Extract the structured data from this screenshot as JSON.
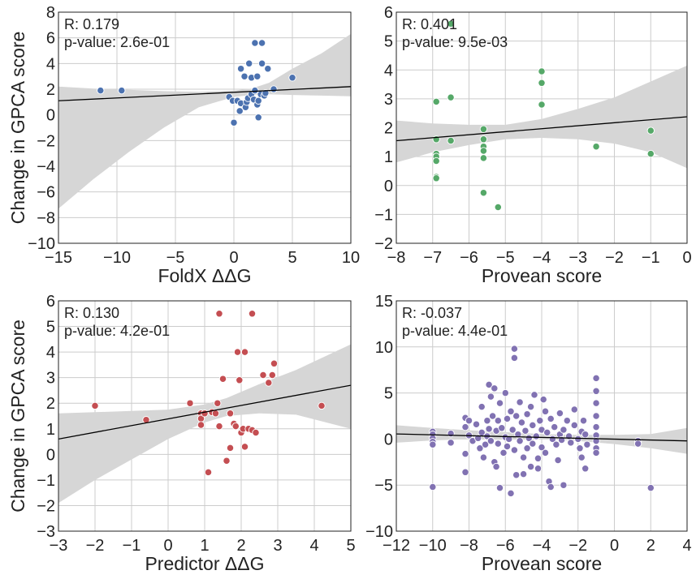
{
  "chart_data": [
    {
      "type": "scatter",
      "title": "",
      "xlabel": "FoldX ΔΔG",
      "ylabel": "Change in GPCA score",
      "xlim": [
        -15,
        10
      ],
      "ylim": [
        -10,
        8
      ],
      "xticks": [
        -15,
        -10,
        -5,
        0,
        5,
        10
      ],
      "yticks": [
        -10,
        -8,
        -6,
        -4,
        -2,
        0,
        2,
        4,
        6,
        8
      ],
      "grid": true,
      "color": "#4c72b0",
      "annotation_lines": [
        "R: 0.179",
        "p-value: 2.6e-01"
      ],
      "fit_line": {
        "x": [
          -15,
          10
        ],
        "y": [
          1.1,
          2.2
        ]
      },
      "confidence_band": {
        "x": [
          -15,
          -12,
          -9,
          -6,
          -3,
          0,
          1.5,
          3,
          5,
          7.5,
          10
        ],
        "lower": [
          -7.3,
          -5.0,
          -2.9,
          -1.0,
          0.6,
          1.4,
          1.55,
          1.6,
          1.55,
          1.5,
          1.45
        ],
        "upper": [
          2.2,
          2.05,
          1.95,
          1.85,
          1.8,
          1.9,
          2.05,
          2.5,
          3.6,
          4.8,
          6.3
        ]
      },
      "points": [
        [
          -11.4,
          1.9
        ],
        [
          -9.6,
          1.9
        ],
        [
          0.0,
          -0.6
        ],
        [
          -0.4,
          1.4
        ],
        [
          -0.1,
          1.1
        ],
        [
          0.3,
          1.1
        ],
        [
          0.6,
          0.9
        ],
        [
          0.5,
          0.3
        ],
        [
          0.6,
          3.6
        ],
        [
          0.9,
          3.0
        ],
        [
          1.0,
          0.6
        ],
        [
          1.1,
          1.0
        ],
        [
          1.2,
          1.3
        ],
        [
          1.3,
          4.0
        ],
        [
          1.5,
          2.9
        ],
        [
          1.5,
          1.6
        ],
        [
          1.7,
          1.2
        ],
        [
          1.8,
          5.6
        ],
        [
          1.8,
          1.9
        ],
        [
          2.0,
          3.0
        ],
        [
          2.0,
          0.8
        ],
        [
          2.1,
          1.1
        ],
        [
          2.1,
          -0.2
        ],
        [
          2.3,
          1.6
        ],
        [
          2.4,
          5.6
        ],
        [
          2.4,
          4.0
        ],
        [
          2.6,
          1.5
        ],
        [
          2.7,
          1.7
        ],
        [
          2.9,
          3.6
        ],
        [
          3.4,
          2.0
        ],
        [
          5.0,
          2.9
        ]
      ]
    },
    {
      "type": "scatter",
      "title": "",
      "xlabel": "Provean score",
      "ylabel": "",
      "xlim": [
        -8,
        0
      ],
      "ylim": [
        -2,
        6
      ],
      "xticks": [
        -8,
        -7,
        -6,
        -5,
        -4,
        -3,
        -2,
        -1,
        0
      ],
      "yticks": [
        -2,
        -1,
        0,
        1,
        2,
        3,
        4,
        5,
        6
      ],
      "grid": true,
      "color": "#55a868",
      "annotation_lines": [
        "R: 0.401",
        "p-value: 9.5e-03"
      ],
      "fit_line": {
        "x": [
          -8,
          0
        ],
        "y": [
          1.55,
          2.38
        ]
      },
      "confidence_band": {
        "x": [
          -8,
          -7,
          -6,
          -5,
          -4,
          -3,
          -2,
          -1,
          0
        ],
        "lower": [
          0.8,
          1.15,
          1.4,
          1.6,
          1.65,
          1.6,
          1.45,
          1.15,
          0.6
        ],
        "upper": [
          2.25,
          2.15,
          2.1,
          2.1,
          2.3,
          2.65,
          3.05,
          3.6,
          4.15
        ]
      },
      "points": [
        [
          -6.9,
          2.9
        ],
        [
          -6.9,
          1.6
        ],
        [
          -6.9,
          1.1
        ],
        [
          -6.9,
          1.0
        ],
        [
          -6.9,
          0.85
        ],
        [
          -6.9,
          0.3
        ],
        [
          -6.9,
          0.25
        ],
        [
          -6.5,
          5.6
        ],
        [
          -6.5,
          3.05
        ],
        [
          -6.5,
          1.55
        ],
        [
          -5.6,
          1.95
        ],
        [
          -5.6,
          1.6
        ],
        [
          -5.6,
          1.35
        ],
        [
          -5.6,
          1.2
        ],
        [
          -5.6,
          0.95
        ],
        [
          -5.6,
          -0.25
        ],
        [
          -5.2,
          -0.75
        ],
        [
          -4.0,
          3.95
        ],
        [
          -4.0,
          3.55
        ],
        [
          -4.0,
          2.8
        ],
        [
          -2.5,
          1.35
        ],
        [
          -1.0,
          1.9
        ],
        [
          -1.0,
          1.1
        ]
      ]
    },
    {
      "type": "scatter",
      "title": "",
      "xlabel": "Predictor ΔΔG",
      "ylabel": "Change in GPCA score",
      "xlim": [
        -3,
        5
      ],
      "ylim": [
        -3,
        6
      ],
      "xticks": [
        -3,
        -2,
        -1,
        0,
        1,
        2,
        3,
        4,
        5
      ],
      "yticks": [
        -3,
        -2,
        -1,
        0,
        1,
        2,
        3,
        4,
        5,
        6
      ],
      "grid": true,
      "color": "#c44e52",
      "annotation_lines": [
        "R: 0.130",
        "p-value: 4.2e-01"
      ],
      "fit_line": {
        "x": [
          -3,
          5
        ],
        "y": [
          0.6,
          2.7
        ]
      },
      "confidence_band": {
        "x": [
          -3,
          -2,
          -1,
          0,
          1,
          1.6,
          2.5,
          3.5,
          5
        ],
        "lower": [
          -1.9,
          -1.0,
          -0.2,
          0.6,
          1.25,
          1.5,
          1.6,
          1.55,
          1.0
        ],
        "upper": [
          1.6,
          1.65,
          1.7,
          1.75,
          1.95,
          2.2,
          2.75,
          3.3,
          4.3
        ]
      },
      "points": [
        [
          -2.0,
          1.9
        ],
        [
          -0.6,
          1.35
        ],
        [
          0.6,
          2.0
        ],
        [
          0.9,
          1.6
        ],
        [
          0.9,
          1.4
        ],
        [
          0.9,
          1.15
        ],
        [
          1.0,
          1.6
        ],
        [
          1.1,
          -0.7
        ],
        [
          1.2,
          1.65
        ],
        [
          1.3,
          1.6
        ],
        [
          1.35,
          2.0
        ],
        [
          1.4,
          5.5
        ],
        [
          1.4,
          1.1
        ],
        [
          1.5,
          2.95
        ],
        [
          1.6,
          -0.25
        ],
        [
          1.7,
          1.6
        ],
        [
          1.7,
          0.25
        ],
        [
          1.8,
          1.2
        ],
        [
          1.85,
          1.1
        ],
        [
          1.9,
          4.0
        ],
        [
          1.95,
          2.9
        ],
        [
          2.0,
          0.85
        ],
        [
          2.05,
          1.0
        ],
        [
          2.1,
          4.0
        ],
        [
          2.1,
          0.3
        ],
        [
          2.2,
          1.0
        ],
        [
          2.3,
          5.5
        ],
        [
          2.3,
          0.95
        ],
        [
          2.4,
          0.85
        ],
        [
          2.6,
          3.1
        ],
        [
          2.75,
          2.8
        ],
        [
          2.85,
          3.1
        ],
        [
          2.9,
          3.55
        ],
        [
          4.2,
          1.9
        ]
      ]
    },
    {
      "type": "scatter",
      "title": "",
      "xlabel": "Provean score",
      "ylabel": "",
      "xlim": [
        -12,
        4
      ],
      "ylim": [
        -10,
        15
      ],
      "xticks": [
        -12,
        -10,
        -8,
        -6,
        -4,
        -2,
        0,
        2,
        4
      ],
      "yticks": [
        -10,
        -5,
        0,
        5,
        10,
        15
      ],
      "grid": true,
      "color": "#8172b2",
      "annotation_lines": [
        "R: -0.037",
        "p-value: 4.4e-01"
      ],
      "fit_line": {
        "x": [
          -12,
          4
        ],
        "y": [
          0.55,
          -0.2
        ]
      },
      "confidence_band": {
        "x": [
          -12,
          -10,
          -8,
          -6,
          -4,
          -2,
          0,
          2,
          4
        ],
        "lower": [
          -0.4,
          -0.15,
          0.0,
          0.05,
          0.0,
          -0.2,
          -0.55,
          -1.0,
          -1.6
        ],
        "upper": [
          1.5,
          1.2,
          0.95,
          0.75,
          0.55,
          0.45,
          0.45,
          0.55,
          1.2
        ]
      },
      "points": [
        [
          -10,
          0.8
        ],
        [
          -10,
          0.5
        ],
        [
          -10,
          0.1
        ],
        [
          -10,
          -0.3
        ],
        [
          -10,
          -0.6
        ],
        [
          -10,
          -5.2
        ],
        [
          -9,
          0.6
        ],
        [
          -9,
          -0.4
        ],
        [
          -8.2,
          2.3
        ],
        [
          -8.2,
          1.3
        ],
        [
          -8.2,
          -1.6
        ],
        [
          -8.2,
          -3.6
        ],
        [
          -8.0,
          0.4
        ],
        [
          -8.0,
          2.0
        ],
        [
          -7.8,
          -0.2
        ],
        [
          -7.6,
          1.6
        ],
        [
          -7.5,
          0.1
        ],
        [
          -7.4,
          -1.0
        ],
        [
          -7.3,
          3.5
        ],
        [
          -7.3,
          0.7
        ],
        [
          -7.2,
          -2.0
        ],
        [
          -7.1,
          -0.6
        ],
        [
          -7.0,
          2.0
        ],
        [
          -7.0,
          0.3
        ],
        [
          -6.9,
          5.9
        ],
        [
          -6.9,
          1.1
        ],
        [
          -6.8,
          4.6
        ],
        [
          -6.8,
          -0.2
        ],
        [
          -6.7,
          2.5
        ],
        [
          -6.6,
          5.5
        ],
        [
          -6.6,
          -2.5
        ],
        [
          -6.5,
          0.9
        ],
        [
          -6.5,
          -3.0
        ],
        [
          -6.4,
          2.0
        ],
        [
          -6.4,
          -0.5
        ],
        [
          -6.3,
          3.9
        ],
        [
          -6.3,
          -5.3
        ],
        [
          -6.2,
          1.2
        ],
        [
          -6.1,
          -1.5
        ],
        [
          -6.0,
          0.2
        ],
        [
          -6.0,
          5.0
        ],
        [
          -5.9,
          2.2
        ],
        [
          -5.9,
          -0.8
        ],
        [
          -5.8,
          0.0
        ],
        [
          -5.7,
          3.0
        ],
        [
          -5.7,
          -5.9
        ],
        [
          -5.6,
          1.0
        ],
        [
          -5.5,
          9.8
        ],
        [
          -5.5,
          8.8
        ],
        [
          -5.5,
          -1.2
        ],
        [
          -5.4,
          2.5
        ],
        [
          -5.4,
          -3.9
        ],
        [
          -5.3,
          0.5
        ],
        [
          -5.2,
          4.0
        ],
        [
          -5.2,
          -0.2
        ],
        [
          -5.1,
          1.8
        ],
        [
          -5.0,
          -2.0
        ],
        [
          -5.0,
          -3.8
        ],
        [
          -4.9,
          0.9
        ],
        [
          -4.8,
          2.7
        ],
        [
          -4.8,
          -1.0
        ],
        [
          -4.7,
          0.1
        ],
        [
          -4.6,
          3.5
        ],
        [
          -4.6,
          -3.0
        ],
        [
          -4.5,
          1.5
        ],
        [
          -4.5,
          -0.5
        ],
        [
          -4.4,
          4.8
        ],
        [
          -4.3,
          0.3
        ],
        [
          -4.2,
          -2.1
        ],
        [
          -4.2,
          -3.2
        ],
        [
          -4.1,
          2.0
        ],
        [
          -4.0,
          1.0
        ],
        [
          -4.0,
          -0.9
        ],
        [
          -3.9,
          4.3
        ],
        [
          -3.8,
          3.0
        ],
        [
          -3.8,
          -1.5
        ],
        [
          -3.7,
          0.7
        ],
        [
          -3.6,
          -4.6
        ],
        [
          -3.5,
          2.2
        ],
        [
          -3.5,
          -5.2
        ],
        [
          -3.4,
          0.0
        ],
        [
          -3.3,
          1.3
        ],
        [
          -3.2,
          -0.6
        ],
        [
          -3.1,
          -2.3
        ],
        [
          -3.0,
          2.8
        ],
        [
          -3.0,
          0.5
        ],
        [
          -2.9,
          -0.1
        ],
        [
          -2.8,
          1.0
        ],
        [
          -2.8,
          -5.0
        ],
        [
          -2.6,
          2.0
        ],
        [
          -2.5,
          0.3
        ],
        [
          -2.4,
          -0.4
        ],
        [
          -2.2,
          3.2
        ],
        [
          -2.2,
          1.5
        ],
        [
          -2.0,
          0.0
        ],
        [
          -1.9,
          -1.0
        ],
        [
          -1.8,
          0.8
        ],
        [
          -1.8,
          -2.0
        ],
        [
          -1.7,
          2.0
        ],
        [
          -1.6,
          -3.2
        ],
        [
          -1.6,
          0.5
        ],
        [
          -1.5,
          -0.6
        ],
        [
          -1.0,
          6.6
        ],
        [
          -1.0,
          5.2
        ],
        [
          -1.0,
          3.9
        ],
        [
          -1.0,
          2.5
        ],
        [
          -1.0,
          1.3
        ],
        [
          -1.0,
          0.4
        ],
        [
          -1.0,
          -0.2
        ],
        [
          -1.0,
          -1.0
        ],
        [
          -1.0,
          -1.5
        ],
        [
          1.3,
          -0.2
        ],
        [
          1.3,
          -0.5
        ],
        [
          2.0,
          -5.3
        ]
      ]
    }
  ]
}
